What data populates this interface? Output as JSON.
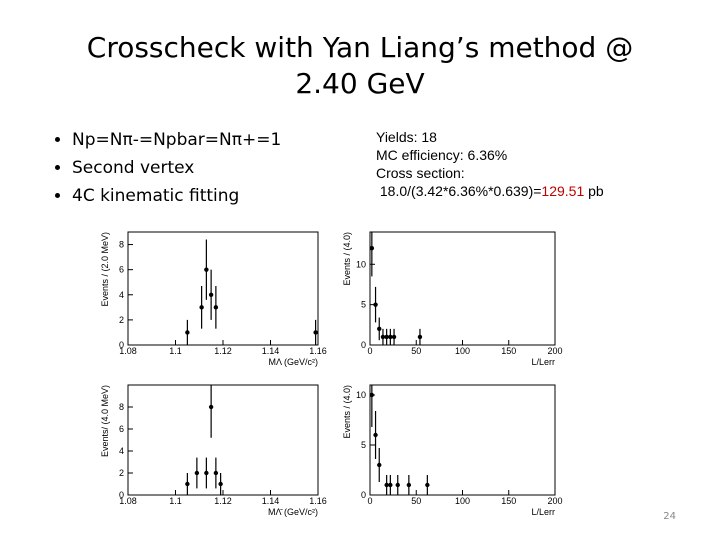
{
  "title": [
    "Crosscheck with Yan Liang’s method @",
    "2.40 GeV"
  ],
  "bullets": [
    "Np=Nπ-=Npbar=Nπ+=1",
    "Second vertex",
    "4C kinematic fitting"
  ],
  "results": {
    "lines": [
      "Yields:  18",
      "MC efficiency: 6.36%",
      "Cross section:"
    ],
    "formula": "18.0/(3.42*6.36%*0.639)=",
    "value": "129.51",
    "unit": "pb",
    "value_color": "#c00000"
  },
  "page_number": "24",
  "chart_data": [
    {
      "type": "scatter",
      "xlabel": "MΛ (GeV/c²)",
      "ylabel": "Events / (2.0 MeV)",
      "x": [
        1.105,
        1.111,
        1.113,
        1.115,
        1.117,
        1.159
      ],
      "values": [
        1,
        3,
        6,
        4,
        3,
        1
      ],
      "errors": [
        1,
        1.7,
        2.4,
        2,
        1.7,
        1
      ],
      "xlim": [
        1.08,
        1.16
      ],
      "ylim": [
        0,
        9
      ],
      "xticks": [
        1.08,
        1.1,
        1.12,
        1.14,
        1.16
      ],
      "yticks": [
        0,
        2,
        4,
        6,
        8
      ],
      "color": "#000000"
    },
    {
      "type": "scatter",
      "xlabel": "L/Lerr",
      "ylabel": "Events / (4.0)",
      "x": [
        2,
        6,
        10,
        14,
        18,
        22,
        26,
        54
      ],
      "values": [
        12,
        5,
        2,
        1,
        1,
        1,
        1,
        1
      ],
      "errors": [
        3.5,
        2.2,
        1.4,
        1,
        1,
        1,
        1,
        1
      ],
      "xlim": [
        0,
        200
      ],
      "ylim": [
        0,
        14
      ],
      "xticks": [
        0,
        50,
        100,
        150,
        200
      ],
      "yticks": [
        0,
        5,
        10
      ],
      "color": "#000000"
    },
    {
      "type": "scatter",
      "xlabel": "MΛ̄ (GeV/c²)",
      "ylabel": "Events/ (4.0 MeV)",
      "x": [
        1.105,
        1.109,
        1.113,
        1.115,
        1.117,
        1.119
      ],
      "values": [
        1,
        2,
        2,
        8,
        2,
        1
      ],
      "errors": [
        1,
        1.4,
        1.4,
        2.8,
        1.4,
        1
      ],
      "xlim": [
        1.08,
        1.16
      ],
      "ylim": [
        0,
        10
      ],
      "xticks": [
        1.08,
        1.1,
        1.12,
        1.14,
        1.16
      ],
      "yticks": [
        0,
        2,
        4,
        6,
        8
      ],
      "color": "#000000"
    },
    {
      "type": "scatter",
      "xlabel": "L/Lerr",
      "ylabel": "Events / (4.0)",
      "x": [
        2,
        6,
        10,
        18,
        22,
        30,
        42,
        62
      ],
      "values": [
        10,
        6,
        3,
        1,
        1,
        1,
        1,
        1
      ],
      "errors": [
        3.2,
        2.4,
        1.7,
        1,
        1,
        1,
        1,
        1
      ],
      "xlim": [
        0,
        200
      ],
      "ylim": [
        0,
        11
      ],
      "xticks": [
        0,
        50,
        100,
        150,
        200
      ],
      "yticks": [
        0,
        5,
        10
      ],
      "color": "#000000"
    }
  ]
}
